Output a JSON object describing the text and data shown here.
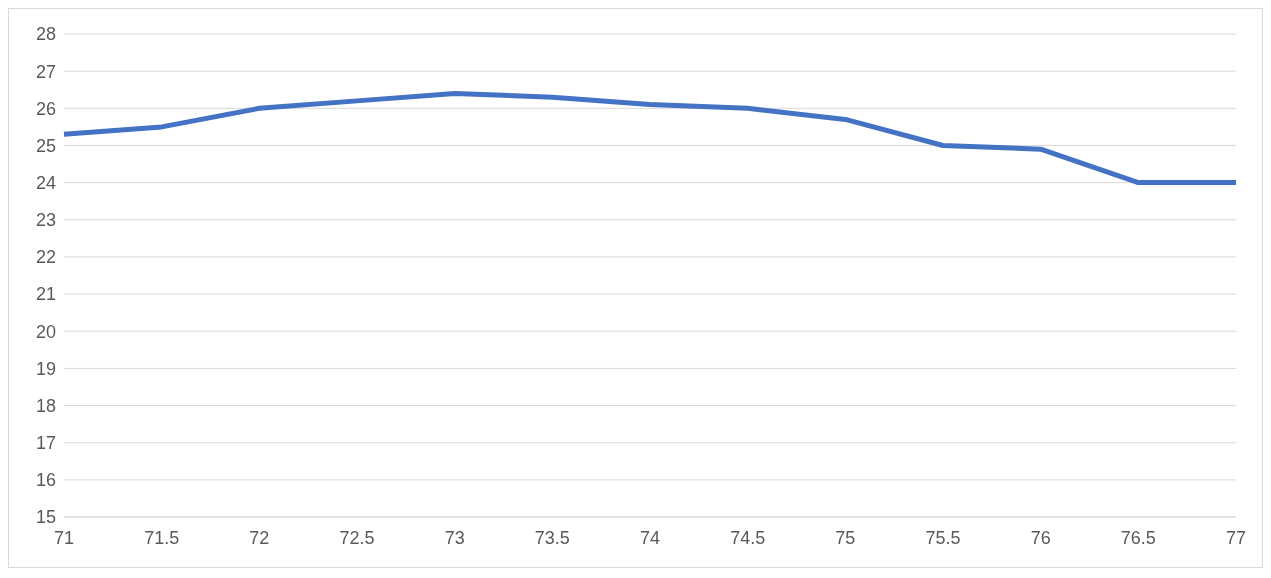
{
  "chart_data": {
    "type": "line",
    "categories": [
      "71",
      "71.5",
      "72",
      "72.5",
      "73",
      "73.5",
      "74",
      "74.5",
      "75",
      "75.5",
      "76",
      "76.5",
      "77"
    ],
    "values": [
      25.3,
      25.5,
      26,
      26.2,
      26.4,
      26.3,
      26.1,
      26,
      25.7,
      25,
      24.9,
      24,
      24
    ],
    "color": "#4472c4",
    "ylim": [
      15,
      28
    ],
    "yticks": [
      15,
      16,
      17,
      18,
      19,
      20,
      21,
      22,
      23,
      24,
      25,
      26,
      27,
      28
    ],
    "grid": "y",
    "legend": false
  }
}
